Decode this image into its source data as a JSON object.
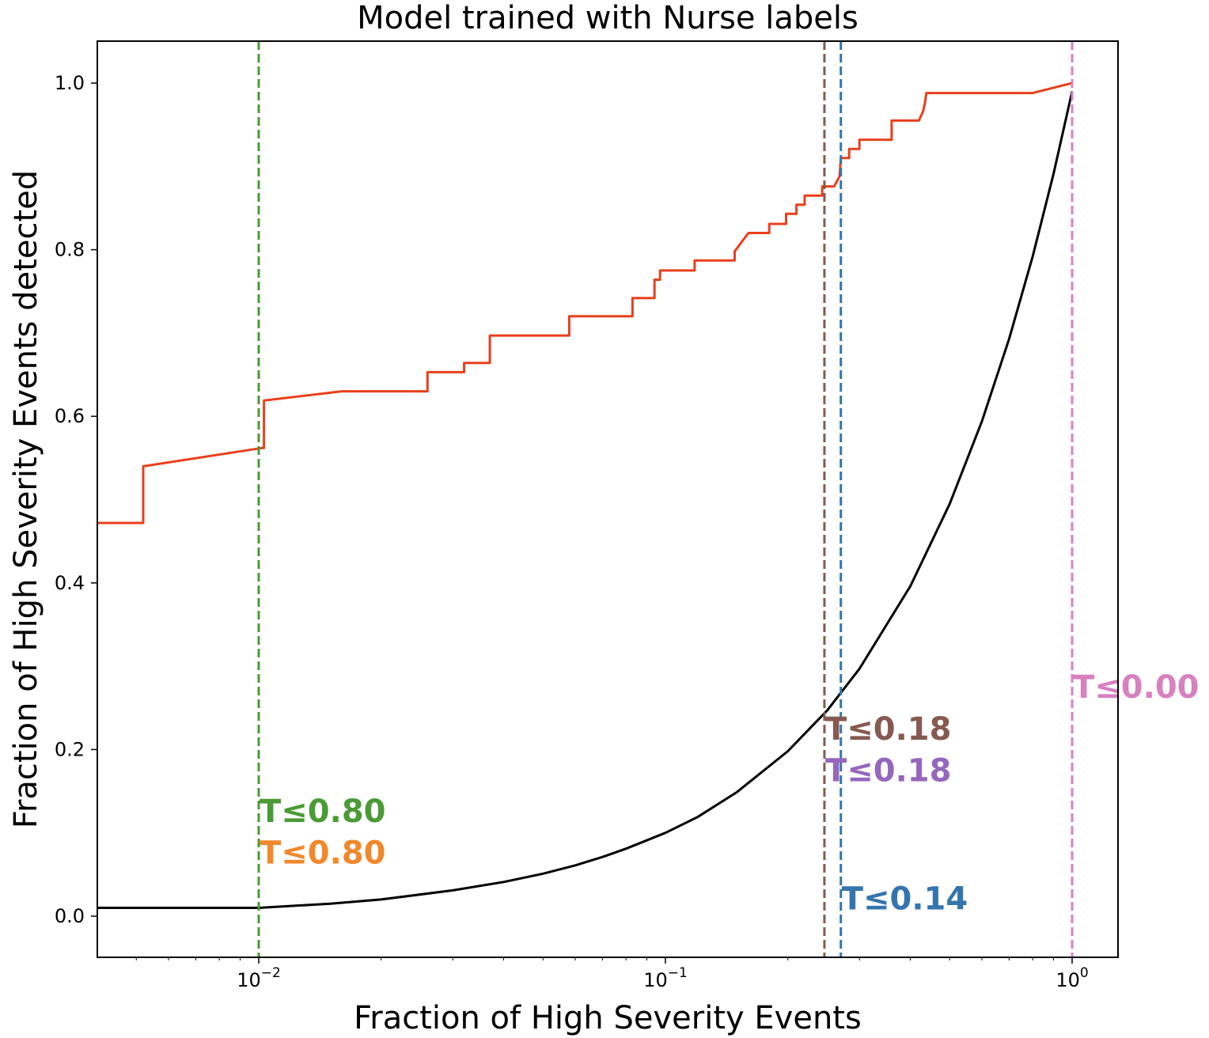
{
  "chart_data": {
    "type": "line",
    "title": "Model trained with Nurse labels",
    "xlabel": "Fraction of High Severity Events",
    "ylabel": "Fraction of High Severity Events detected",
    "xscale": "log",
    "xlim": [
      0.004,
      1.35
    ],
    "ylim": [
      -0.05,
      1.05
    ],
    "grid": false,
    "legend": "none",
    "x_ticks": [
      {
        "value": 0.01,
        "base": "10",
        "exp": "−2"
      },
      {
        "value": 0.1,
        "base": "10",
        "exp": "−1"
      },
      {
        "value": 1,
        "base": "10",
        "exp": "0"
      }
    ],
    "y_ticks": [
      {
        "value": 0.0,
        "label": "0.0"
      },
      {
        "value": 0.2,
        "label": "0.2"
      },
      {
        "value": 0.4,
        "label": "0.4"
      },
      {
        "value": 0.6,
        "label": "0.6"
      },
      {
        "value": 0.8,
        "label": "0.8"
      },
      {
        "value": 1.0,
        "label": "1.0"
      }
    ],
    "series": [
      {
        "color": "#e8401c",
        "points": [
          [
            0.004,
            0.472
          ],
          [
            0.0052,
            0.472
          ],
          [
            0.0052,
            0.54
          ],
          [
            0.0102,
            0.562
          ],
          [
            0.0103,
            0.562
          ],
          [
            0.0103,
            0.619
          ],
          [
            0.016,
            0.63
          ],
          [
            0.026,
            0.63
          ],
          [
            0.026,
            0.653
          ],
          [
            0.032,
            0.653
          ],
          [
            0.032,
            0.664
          ],
          [
            0.037,
            0.664
          ],
          [
            0.037,
            0.697
          ],
          [
            0.058,
            0.697
          ],
          [
            0.058,
            0.72
          ],
          [
            0.083,
            0.72
          ],
          [
            0.083,
            0.742
          ],
          [
            0.094,
            0.742
          ],
          [
            0.094,
            0.764
          ],
          [
            0.097,
            0.764
          ],
          [
            0.097,
            0.775
          ],
          [
            0.118,
            0.775
          ],
          [
            0.118,
            0.787
          ],
          [
            0.148,
            0.787
          ],
          [
            0.148,
            0.798
          ],
          [
            0.16,
            0.82
          ],
          [
            0.18,
            0.82
          ],
          [
            0.18,
            0.831
          ],
          [
            0.198,
            0.831
          ],
          [
            0.198,
            0.843
          ],
          [
            0.21,
            0.843
          ],
          [
            0.21,
            0.854
          ],
          [
            0.22,
            0.854
          ],
          [
            0.22,
            0.865
          ],
          [
            0.243,
            0.865
          ],
          [
            0.243,
            0.876
          ],
          [
            0.26,
            0.876
          ],
          [
            0.268,
            0.888
          ],
          [
            0.27,
            0.91
          ],
          [
            0.283,
            0.91
          ],
          [
            0.283,
            0.921
          ],
          [
            0.3,
            0.921
          ],
          [
            0.3,
            0.932
          ],
          [
            0.36,
            0.932
          ],
          [
            0.36,
            0.955
          ],
          [
            0.42,
            0.955
          ],
          [
            0.43,
            0.966
          ],
          [
            0.435,
            0.977
          ],
          [
            0.438,
            0.988
          ],
          [
            0.8,
            0.988
          ],
          [
            1.0,
            1.0
          ]
        ]
      },
      {
        "color": "#000000",
        "points": [
          [
            0.004,
            0.01
          ],
          [
            0.01,
            0.01
          ],
          [
            0.015,
            0.015
          ],
          [
            0.02,
            0.02
          ],
          [
            0.03,
            0.031
          ],
          [
            0.04,
            0.041
          ],
          [
            0.05,
            0.051
          ],
          [
            0.06,
            0.061
          ],
          [
            0.07,
            0.071
          ],
          [
            0.08,
            0.081
          ],
          [
            0.1,
            0.1
          ],
          [
            0.12,
            0.119
          ],
          [
            0.15,
            0.149
          ],
          [
            0.2,
            0.198
          ],
          [
            0.25,
            0.247
          ],
          [
            0.3,
            0.297
          ],
          [
            0.4,
            0.396
          ],
          [
            0.5,
            0.495
          ],
          [
            0.6,
            0.594
          ],
          [
            0.7,
            0.693
          ],
          [
            0.8,
            0.792
          ],
          [
            0.9,
            0.891
          ],
          [
            1.0,
            0.99
          ]
        ]
      }
    ],
    "vlines": [
      {
        "x": 0.01,
        "color": "#4a9a35"
      },
      {
        "x": 0.246,
        "color": "#855a50"
      },
      {
        "x": 0.27,
        "color": "#3475ae"
      },
      {
        "x": 1.0,
        "color": "#d880c0"
      }
    ],
    "annotations": [
      {
        "text": "T≤0.80",
        "x": 0.01,
        "y": 0.113,
        "color": "#4a9a35"
      },
      {
        "text": "T≤0.80",
        "x": 0.01,
        "y": 0.063,
        "color": "#f0882c"
      },
      {
        "text": "T≤0.18",
        "x": 0.246,
        "y": 0.212,
        "color": "#855a50"
      },
      {
        "text": "T≤0.18",
        "x": 0.246,
        "y": 0.162,
        "color": "#9467bd"
      },
      {
        "text": "T≤0.14",
        "x": 0.27,
        "y": 0.008,
        "color": "#3475ae"
      },
      {
        "text": "T≤0.00",
        "x": 1.0,
        "y": 0.262,
        "color": "#d880c0"
      }
    ]
  }
}
